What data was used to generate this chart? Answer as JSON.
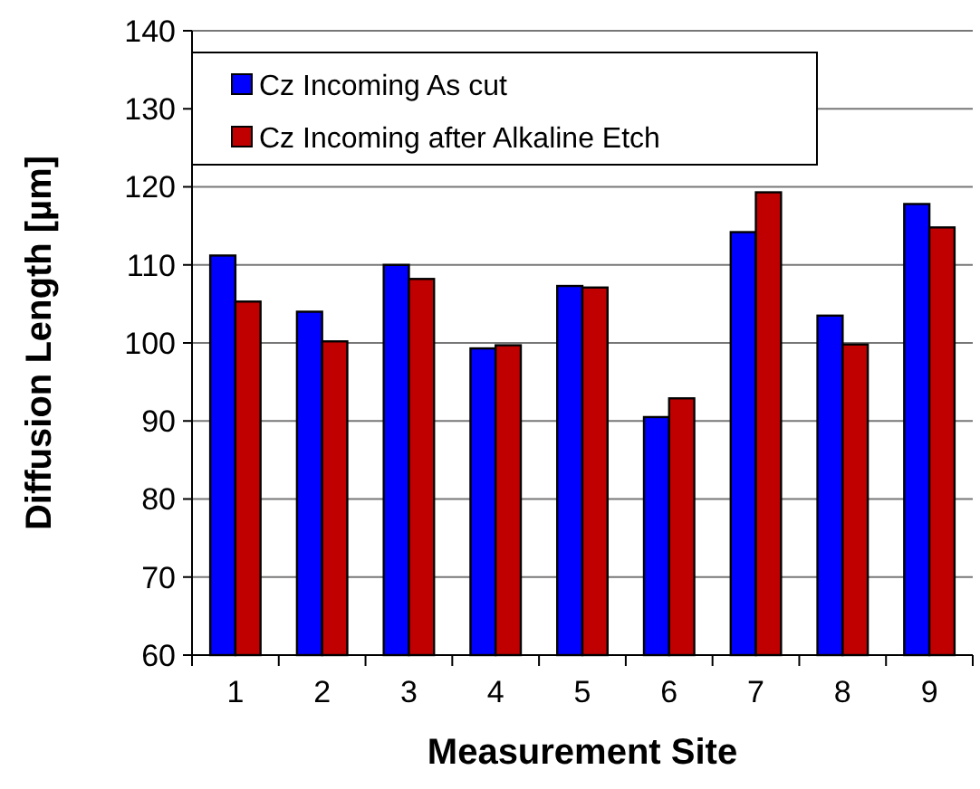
{
  "chart_data": {
    "type": "bar",
    "xlabel": "Measurement Site",
    "ylabel": "Diffusion Length [µm]",
    "categories": [
      "1",
      "2",
      "3",
      "4",
      "5",
      "6",
      "7",
      "8",
      "9"
    ],
    "series": [
      {
        "name": "Cz Incoming As cut",
        "color": "#0000ff",
        "values": [
          111.2,
          104,
          110,
          99.3,
          107.3,
          90.5,
          114.2,
          103.5,
          117.8
        ]
      },
      {
        "name": "Cz Incoming after Alkaline Etch",
        "color": "#c00000",
        "values": [
          105.3,
          100.2,
          108.2,
          99.7,
          107.1,
          92.9,
          119.3,
          99.8,
          114.8
        ]
      }
    ],
    "ylim": [
      60,
      140
    ],
    "yticks": [
      60,
      70,
      80,
      90,
      100,
      110,
      120,
      130,
      140
    ],
    "grid": "y",
    "legend": "top left"
  }
}
